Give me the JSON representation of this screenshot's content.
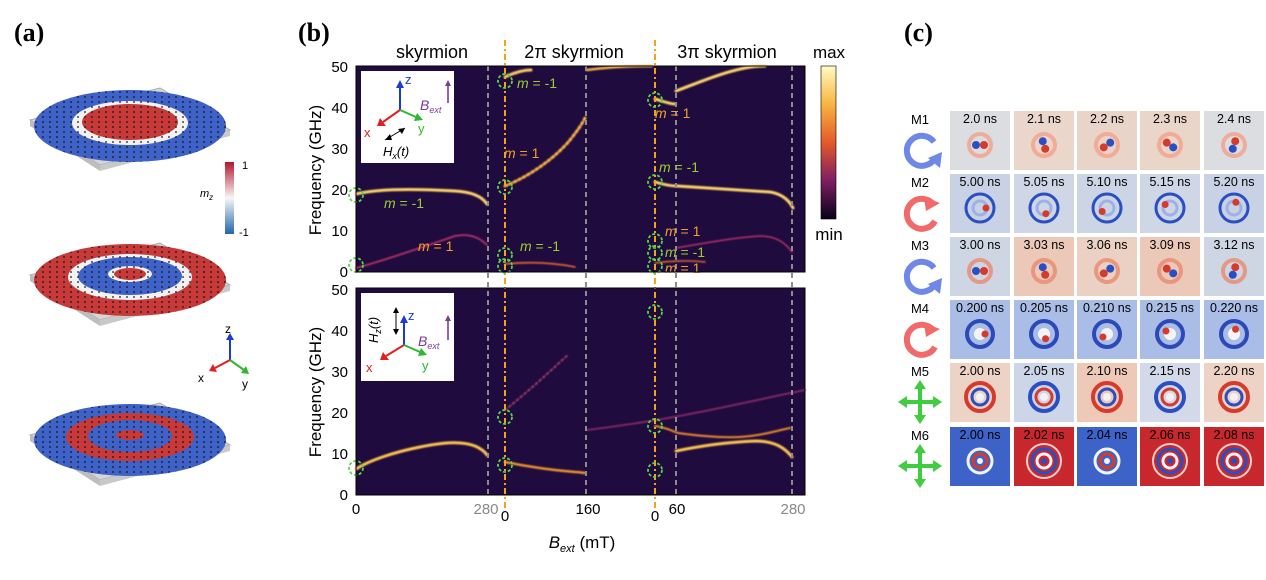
{
  "panel_a": {
    "label": "(a)",
    "colorbar": {
      "max": "1",
      "min": "-1",
      "title": "m",
      "title_sub": "z"
    },
    "axes": {
      "z": "z",
      "x": "x",
      "y": "y"
    }
  },
  "panel_b": {
    "label": "(b)",
    "section_titles": [
      "skyrmion",
      "2π skyrmion",
      "3π skyrmion"
    ],
    "colorbar": {
      "max": "max",
      "min": "min"
    },
    "y_label": "Frequency (GHz)",
    "x_label_main": "B",
    "x_label_sub": "ext",
    "x_label_unit": " (mT)",
    "y_ticks": [
      "0",
      "10",
      "20",
      "30",
      "40",
      "50"
    ],
    "x_ticks": [
      "0",
      "280",
      "0",
      "160",
      "0",
      "60",
      "280"
    ],
    "top_inset": {
      "z": "z",
      "x": "x",
      "y": "y",
      "B": "B",
      "B_sub": "ext",
      "H": "H",
      "H_sub": "x",
      "H_arg": "(t)"
    },
    "bottom_inset": {
      "z": "z",
      "x": "x",
      "y": "y",
      "B": "B",
      "B_sub": "ext",
      "H": "H",
      "H_sub": "z",
      "H_arg": "(t)"
    },
    "mode_labels": [
      {
        "m": "m",
        "eq": " = -1",
        "color": "#9acd32"
      },
      {
        "m": "m",
        "eq": " = 1",
        "color": "#f0a030"
      },
      {
        "m": "m",
        "eq": " = -1",
        "color": "#9acd32"
      },
      {
        "m": "m",
        "eq": " = 1",
        "color": "#f0a030"
      },
      {
        "m": "m",
        "eq": " = -1",
        "color": "#9acd32"
      },
      {
        "m": "m",
        "eq": " = 1",
        "color": "#f0a030"
      },
      {
        "m": "m",
        "eq": " = -1",
        "color": "#9acd32"
      },
      {
        "m": "m",
        "eq": " = 1",
        "color": "#f0a030"
      },
      {
        "m": "m",
        "eq": " = -1",
        "color": "#9acd32"
      },
      {
        "m": "m",
        "eq": " = 1",
        "color": "#f0a030"
      }
    ]
  },
  "panel_c": {
    "label": "(c)",
    "rows": [
      {
        "mode": "M1",
        "icon": "ccw-rotation-icon",
        "times": [
          "2.0 ns",
          "2.1 ns",
          "2.2 ns",
          "2.3 ns",
          "2.4 ns"
        ]
      },
      {
        "mode": "M2",
        "icon": "cw-rotation-icon",
        "times": [
          "5.00 ns",
          "5.05 ns",
          "5.10 ns",
          "5.15 ns",
          "5.20 ns"
        ]
      },
      {
        "mode": "M3",
        "icon": "ccw-rotation-icon",
        "times": [
          "3.00 ns",
          "3.03 ns",
          "3.06 ns",
          "3.09 ns",
          "3.12 ns"
        ]
      },
      {
        "mode": "M4",
        "icon": "cw-rotation-icon",
        "times": [
          "0.200 ns",
          "0.205 ns",
          "0.210 ns",
          "0.215 ns",
          "0.220 ns"
        ]
      },
      {
        "mode": "M5",
        "icon": "breathing-icon",
        "times": [
          "2.00 ns",
          "2.05 ns",
          "2.10 ns",
          "2.15 ns",
          "2.20 ns"
        ]
      },
      {
        "mode": "M6",
        "icon": "breathing-icon",
        "times": [
          "2.00 ns",
          "2.02 ns",
          "2.04 ns",
          "2.06 ns",
          "2.08 ns"
        ]
      }
    ]
  },
  "colors": {
    "spectrum_bg": "#1f0b3d",
    "guide_orange": "#f3a21c",
    "guide_gray": "#8c8c8c",
    "circle_green": "#56d64a"
  }
}
